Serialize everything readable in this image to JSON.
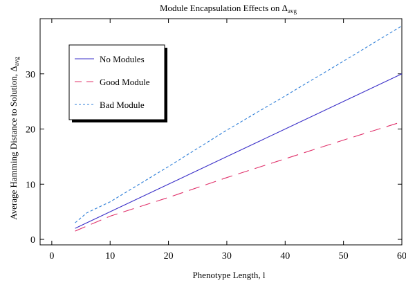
{
  "chart_data": {
    "type": "line",
    "title": "Module Encapsulation Effects on Δ",
    "title_subscript": "avg",
    "xlabel": "Phenotype Length, l",
    "ylabel": "Average Hamming Distance to Solution, Δ",
    "ylabel_subscript": "avg",
    "xlim": [
      -2,
      60
    ],
    "ylim": [
      -1,
      40
    ],
    "xticks": [
      0,
      10,
      20,
      30,
      40,
      50,
      60
    ],
    "yticks": [
      0,
      10,
      20,
      30
    ],
    "grid": false,
    "legend_position": "top-left",
    "series": [
      {
        "name": "No Modules",
        "color": "#3a2fc8",
        "dash": "solid",
        "x": [
          4,
          10,
          20,
          30,
          40,
          50,
          60
        ],
        "y": [
          2,
          5,
          10,
          15,
          20,
          25,
          30
        ]
      },
      {
        "name": "Good Module",
        "color": "#e0306a",
        "dash": "long-dash",
        "x": [
          4,
          10,
          20,
          30,
          40,
          50,
          60
        ],
        "y": [
          1.5,
          4.2,
          7.6,
          11.2,
          14.6,
          18,
          21.3
        ]
      },
      {
        "name": "Bad Module",
        "color": "#2f7fd8",
        "dash": "short-dash",
        "x": [
          4,
          6,
          10,
          20,
          30,
          40,
          50,
          60
        ],
        "y": [
          3,
          4.8,
          6.8,
          13.2,
          19.8,
          26,
          32.3,
          38.7
        ]
      }
    ]
  }
}
